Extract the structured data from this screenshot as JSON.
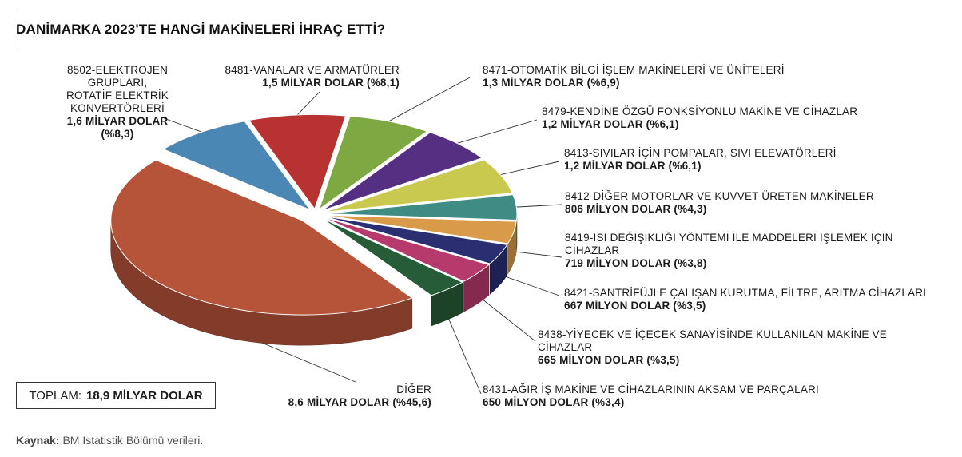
{
  "title": "DANİMARKA 2023'TE HANGİ MAKİNELERİ İHRAÇ ETTİ?",
  "total": {
    "label": "TOPLAM:",
    "value": "18,9 MİLYAR DOLAR"
  },
  "source": {
    "label": "Kaynak:",
    "text": "BM İstatistik Bölümü verileri."
  },
  "labels": [
    {
      "lines": [
        "8502-ELEKTROJEN",
        "GRUPLARI,",
        "ROTATİF ELEKTRİK",
        "KONVERTÖRLERİ"
      ],
      "value": "1,6 MİLYAR DOLAR",
      "share": "(%8,3)"
    },
    {
      "name": "8481-VANALAR VE ARMATÜRLER",
      "value": "1,5 MİLYAR DOLAR (%8,1)"
    },
    {
      "name": "8471-OTOMATİK BİLGİ İŞLEM MAKİNELERİ VE ÜNİTELERİ",
      "value": "1,3 MİLYAR DOLAR (%6,9)"
    },
    {
      "name": "8479-KENDİNE ÖZGÜ FONKSİYONLU MAKİNE VE CİHAZLAR",
      "value": "1,2 MİLYAR DOLAR (%6,1)"
    },
    {
      "name": "8413-SIVILAR İÇİN POMPALAR, SIVI ELEVATÖRLERİ",
      "value": "1,2 MİLYAR DOLAR (%6,1)"
    },
    {
      "name": "8412-DİĞER MOTORLAR VE KUVVET ÜRETEN MAKİNELER",
      "value": "806 MİLYON DOLAR (%4,3)"
    },
    {
      "lines": [
        "8419-ISI DEĞİŞİKLİĞİ YÖNTEMİ İLE MADDELERİ İŞLEMEK İÇİN",
        "CİHAZLAR"
      ],
      "value": "719 MİLYON DOLAR (%3,8)"
    },
    {
      "name": "8421-SANTRİFÜJLE ÇALIŞAN KURUTMA, FİLTRE, ARITMA CİHAZLARI",
      "value": "667 MİLYON DOLAR (%3,5)"
    },
    {
      "lines": [
        "8438-YİYECEK VE İÇECEK SANAYİSİNDE KULLANILAN MAKİNE VE",
        "CİHAZLAR"
      ],
      "value": "665 MİLYON DOLAR (%3,5)"
    },
    {
      "name": "8431-AĞIR İŞ MAKİNE VE CİHAZLARININ AKSAM VE PARÇALARI",
      "value": "650 MİLYON DOLAR (%3,4)"
    },
    {
      "name": "DİĞER",
      "value": "8,6 MİLYAR DOLAR (%45,6)"
    }
  ],
  "chart_data": {
    "type": "pie",
    "title": "DANİMARKA 2023'TE HANGİ MAKİNELERİ İHRAÇ ETTİ?",
    "unit": "%",
    "slices": [
      {
        "label": "8502-ELEKTROJEN GRUPLARI, ROTATİF ELEKTRİK KONVERTÖRLERİ",
        "value": 8.3,
        "amount": "1,6 MİLYAR DOLAR",
        "color": "#4a87b5"
      },
      {
        "label": "8481-VANALAR VE ARMATÜRLER",
        "value": 8.1,
        "amount": "1,5 MİLYAR DOLAR",
        "color": "#b73230"
      },
      {
        "label": "8471-OTOMATİK BİLGİ İŞLEM MAKİNELERİ VE ÜNİTELERİ",
        "value": 6.9,
        "amount": "1,3 MİLYAR DOLAR",
        "color": "#7ea841"
      },
      {
        "label": "8479-KENDİNE ÖZGÜ FONKSİYONLU MAKİNE VE CİHAZLAR",
        "value": 6.1,
        "amount": "1,2 MİLYAR DOLAR",
        "color": "#553082"
      },
      {
        "label": "8413-SIVILAR İÇİN POMPALAR, SIVI ELEVATÖRLERİ",
        "value": 6.1,
        "amount": "1,2 MİLYAR DOLAR",
        "color": "#c9c950"
      },
      {
        "label": "8412-DİĞER MOTORLAR VE KUVVET ÜRETEN MAKİNELER",
        "value": 4.3,
        "amount": "806 MİLYON DOLAR",
        "color": "#3e8c83"
      },
      {
        "label": "8419-ISI DEĞİŞİKLİĞİ YÖNTEMİ İLE MADDELERİ İŞLEMEK İÇİN CİHAZLAR",
        "value": 3.8,
        "amount": "719 MİLYON DOLAR",
        "color": "#d99a49"
      },
      {
        "label": "8421-SANTRİFÜJLE ÇALIŞAN KURUTMA, FİLTRE, ARITMA CİHAZLARI",
        "value": 3.5,
        "amount": "667 MİLYON DOLAR",
        "color": "#2a2f72"
      },
      {
        "label": "8438-YİYECEK VE İÇECEK SANAYİSİNDE KULLANILAN MAKİNE VE CİHAZLAR",
        "value": 3.5,
        "amount": "665 MİLYON DOLAR",
        "color": "#b63a6c"
      },
      {
        "label": "8431-AĞIR İŞ MAKİNE VE CİHAZLARININ AKSAM VE PARÇALARI",
        "value": 3.4,
        "amount": "650 MİLYON DOLAR",
        "color": "#275c38"
      },
      {
        "label": "DİĞER",
        "value": 45.6,
        "amount": "8,6 MİLYAR DOLAR",
        "color": "#b6543a"
      }
    ]
  }
}
